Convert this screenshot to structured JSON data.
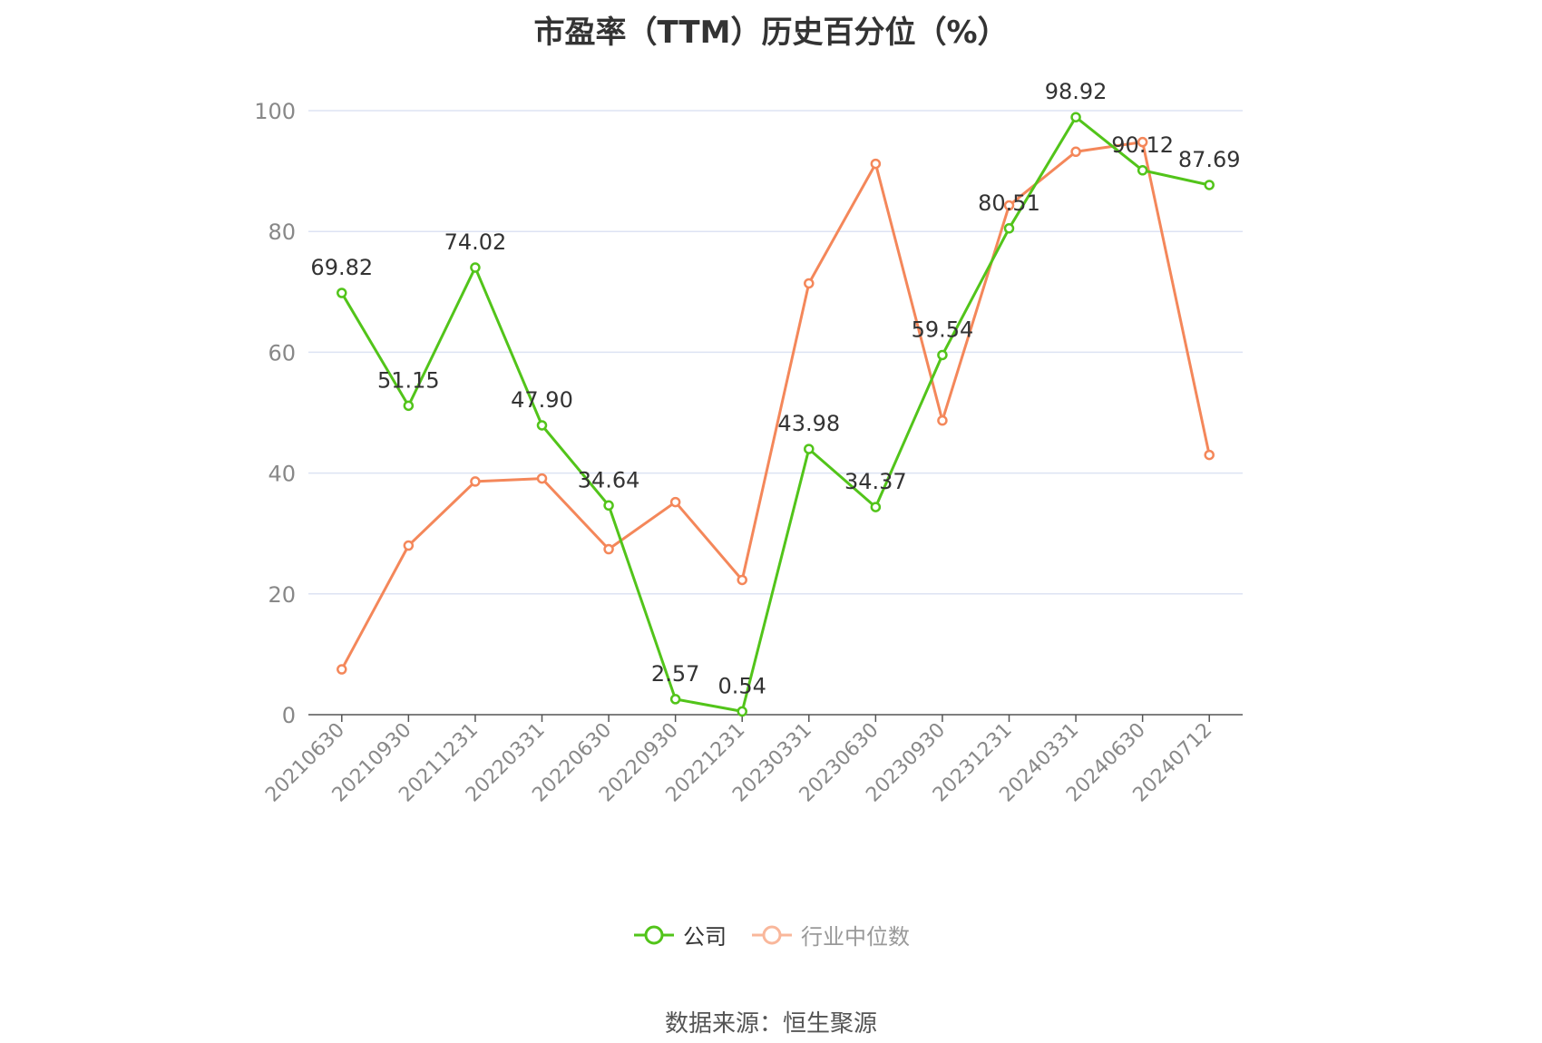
{
  "title": "市盈率（TTM）历史百分位（%）",
  "source": "数据来源：恒生聚源",
  "colors": {
    "company": "#52c41a",
    "industry": "#f4875a",
    "grid": "#dde3f3",
    "axis": "#555555",
    "tick_text": "#888888"
  },
  "chart_data": {
    "type": "line",
    "title": "市盈率（TTM）历史百分位（%）",
    "xlabel": "",
    "ylabel": "",
    "ylim": [
      0,
      100
    ],
    "yticks": [
      0,
      20,
      40,
      60,
      80,
      100
    ],
    "grid": true,
    "legend_position": "bottom-center",
    "categories": [
      "20210630",
      "20210930",
      "20211231",
      "20220331",
      "20220630",
      "20220930",
      "20221231",
      "20230331",
      "20230630",
      "20230930",
      "20231231",
      "20240331",
      "20240630",
      "20240712"
    ],
    "series": [
      {
        "name": "公司",
        "color": "#52c41a",
        "values": [
          69.82,
          51.15,
          74.02,
          47.9,
          34.64,
          2.57,
          0.54,
          43.98,
          34.37,
          59.54,
          80.51,
          98.92,
          90.12,
          87.69
        ],
        "labels": [
          "69.82",
          "51.15",
          "74.02",
          "47.90",
          "34.64",
          "2.57",
          "0.54",
          "43.98",
          "34.37",
          "59.54",
          "80.51",
          "98.92",
          "90.12",
          "87.69"
        ]
      },
      {
        "name": "行业中位数",
        "color": "#f4875a",
        "values": [
          7.5,
          28.0,
          38.6,
          39.1,
          27.4,
          35.2,
          22.3,
          71.4,
          91.2,
          48.7,
          84.3,
          93.2,
          94.8,
          43.0
        ]
      }
    ]
  }
}
